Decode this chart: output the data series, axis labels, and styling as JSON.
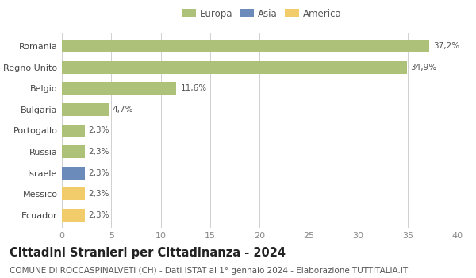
{
  "countries": [
    "Romania",
    "Regno Unito",
    "Belgio",
    "Bulgaria",
    "Portogallo",
    "Russia",
    "Israele",
    "Messico",
    "Ecuador"
  ],
  "values": [
    37.2,
    34.9,
    11.6,
    4.7,
    2.3,
    2.3,
    2.3,
    2.3,
    2.3
  ],
  "labels": [
    "37,2%",
    "34,9%",
    "11,6%",
    "4,7%",
    "2,3%",
    "2,3%",
    "2,3%",
    "2,3%",
    "2,3%"
  ],
  "continents": [
    "Europa",
    "Europa",
    "Europa",
    "Europa",
    "Europa",
    "Europa",
    "Asia",
    "America",
    "America"
  ],
  "colors": {
    "Europa": "#adc178",
    "Asia": "#6b8cba",
    "America": "#f2cb6a"
  },
  "xlim": [
    0,
    40
  ],
  "xticks": [
    0,
    5,
    10,
    15,
    20,
    25,
    30,
    35,
    40
  ],
  "title": "Cittadini Stranieri per Cittadinanza - 2024",
  "subtitle": "COMUNE DI ROCCASPINALVETI (CH) - Dati ISTAT al 1° gennaio 2024 - Elaborazione TUTTITALIA.IT",
  "background_color": "#ffffff",
  "grid_color": "#d0d0d0",
  "bar_height": 0.6,
  "title_fontsize": 10.5,
  "subtitle_fontsize": 7.5,
  "label_fontsize": 7.5,
  "tick_fontsize": 8,
  "legend_fontsize": 8.5
}
